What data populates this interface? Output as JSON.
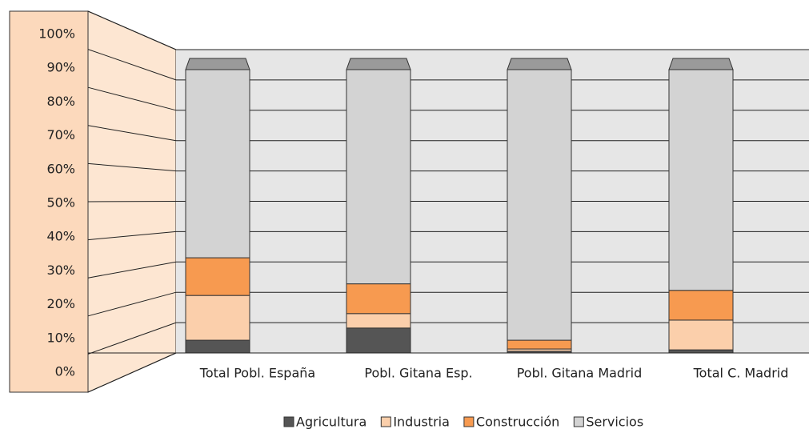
{
  "chart_data": {
    "type": "bar",
    "stacked": true,
    "categories": [
      "Total Pobl. España",
      "Pobl. Gitana Esp.",
      "Pobl. Gitana Madrid",
      "Total C. Madrid"
    ],
    "series": [
      {
        "name": "Agricultura",
        "color": "#555555",
        "values": [
          4.5,
          8.8,
          0.6,
          1.1
        ]
      },
      {
        "name": "Industria",
        "color": "#fbcfab",
        "values": [
          15.8,
          5.1,
          0.8,
          10.5
        ]
      },
      {
        "name": "Construcción",
        "color": "#f79a50",
        "values": [
          13.3,
          10.5,
          3.1,
          10.5
        ]
      },
      {
        "name": "Servicios",
        "color": "#d3d3d3",
        "values": [
          66.4,
          75.6,
          95.5,
          77.9
        ]
      }
    ],
    "ylim": [
      0,
      100
    ],
    "yticks": [
      {
        "value": 0,
        "label": "0%"
      },
      {
        "value": 10,
        "label": "10%"
      },
      {
        "value": 20,
        "label": "20%"
      },
      {
        "value": 30,
        "label": "30%"
      },
      {
        "value": 40,
        "label": "40%"
      },
      {
        "value": 50,
        "label": "50%"
      },
      {
        "value": 60,
        "label": "60%"
      },
      {
        "value": 70,
        "label": "70%"
      },
      {
        "value": 80,
        "label": "80%"
      },
      {
        "value": 90,
        "label": "90%"
      },
      {
        "value": 100,
        "label": "100%"
      }
    ],
    "grid": true,
    "legend": "bottom"
  }
}
